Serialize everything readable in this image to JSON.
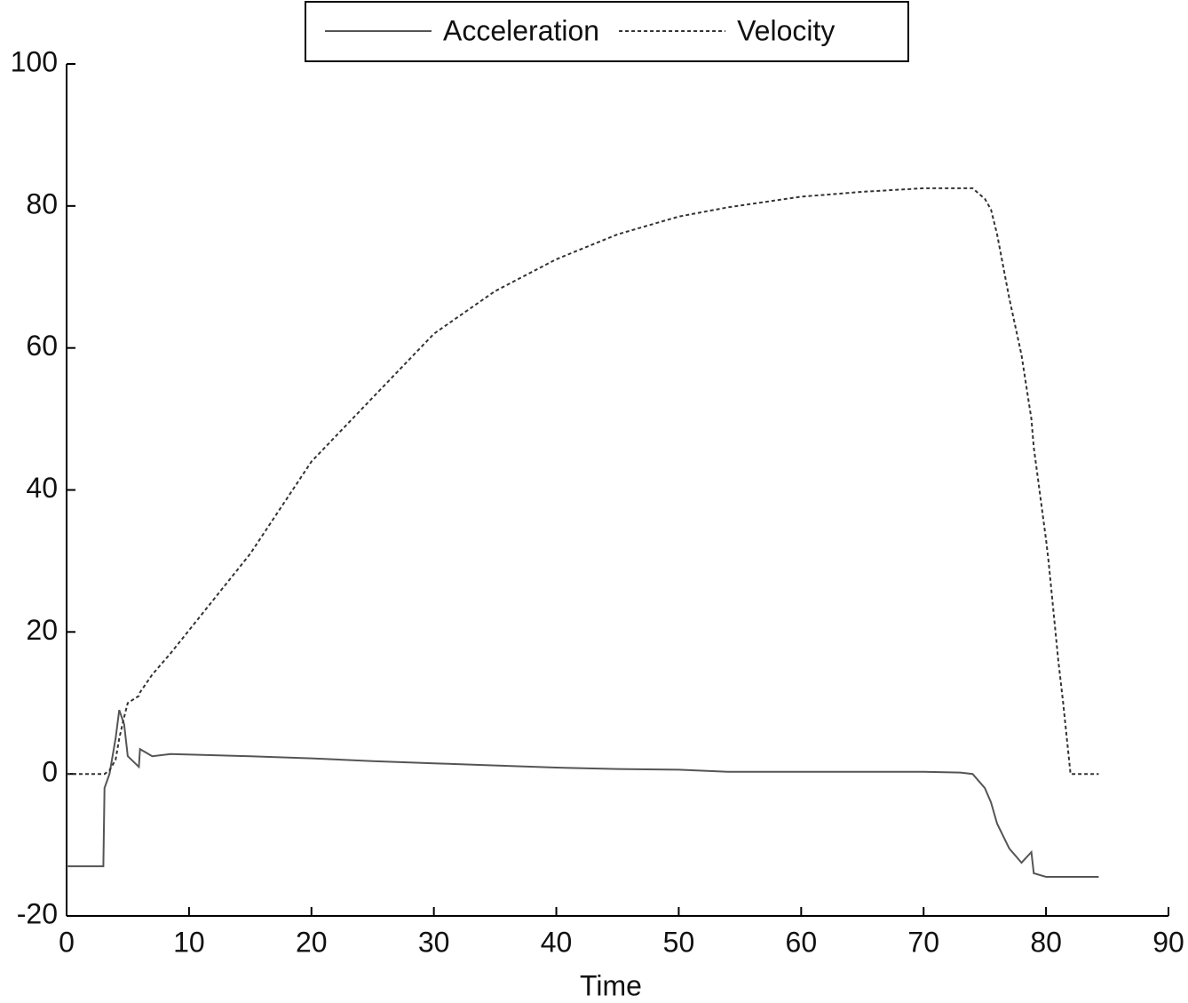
{
  "chart_data": {
    "type": "line",
    "xlabel": "Time",
    "x": [
      0,
      3,
      3.1,
      3.5,
      4,
      4.3,
      4.7,
      5,
      5.9,
      6,
      7,
      8.5,
      15,
      20,
      25,
      30,
      35,
      40,
      45,
      50,
      54,
      60,
      65,
      70,
      73,
      74,
      75,
      75.5,
      76,
      77,
      78,
      78.8,
      79,
      80,
      80.2,
      81,
      81.4,
      82,
      84.3
    ],
    "series": [
      {
        "name": "Acceleration",
        "color": "#555555",
        "dash": "solid",
        "values": [
          -13,
          -13,
          -2,
          0,
          5,
          9,
          7,
          2.5,
          1,
          3.5,
          2.5,
          2.8,
          2.5,
          2.2,
          1.8,
          1.5,
          1.2,
          0.9,
          0.7,
          0.6,
          0.3,
          0.3,
          0.3,
          0.3,
          0.2,
          0,
          -2,
          -4,
          -7,
          -10.5,
          -12.5,
          -11,
          -14,
          -14.5,
          -14.5,
          -14.5,
          -14.5,
          -14.5,
          -14.5
        ]
      },
      {
        "name": "Velocity",
        "color": "#333333",
        "dash": "dotted",
        "values": [
          0,
          0,
          0,
          0.5,
          2,
          5,
          8,
          10,
          11,
          11.5,
          14,
          17,
          31,
          44,
          53,
          62,
          68,
          72.5,
          76,
          78.5,
          79.8,
          81.3,
          82,
          82.5,
          82.5,
          82.5,
          81,
          79.5,
          76,
          67,
          59,
          50,
          46,
          33,
          30,
          16,
          10,
          0,
          0
        ]
      }
    ],
    "xlim": [
      0,
      90
    ],
    "xticks": [
      0,
      10,
      20,
      30,
      40,
      50,
      60,
      70,
      80,
      90
    ],
    "ylim": [
      -20,
      100
    ],
    "yticks": [
      -20,
      0,
      20,
      40,
      60,
      80,
      100
    ],
    "grid": false,
    "legend": "upper center"
  }
}
